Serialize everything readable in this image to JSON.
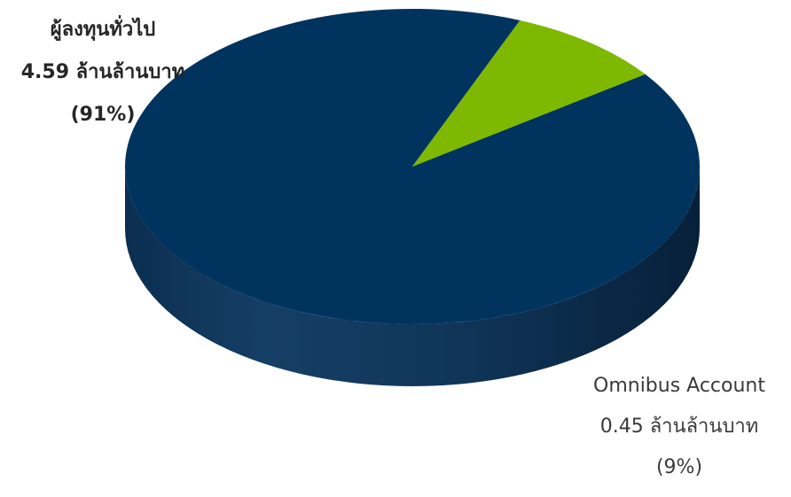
{
  "chart_data": {
    "type": "pie",
    "slices": [
      {
        "name": "ผู้ลงทุนทั่วไป",
        "value_label": "4.59 ล้านล้านบาท",
        "percent_label": "(91%)",
        "value": 4.59,
        "percent": 91,
        "color": "#00345f"
      },
      {
        "name": "Omnibus Account",
        "value_label": "0.45 ล้านล้านบาท",
        "percent_label": "(9%)",
        "value": 0.45,
        "percent": 9,
        "color": "#7fb800"
      }
    ],
    "style": "3d"
  }
}
